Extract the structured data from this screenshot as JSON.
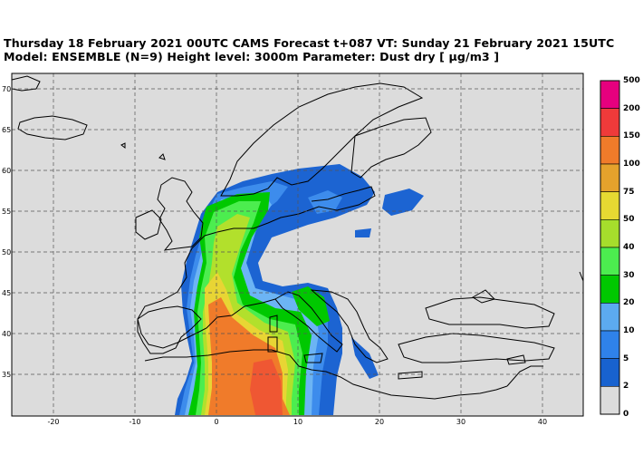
{
  "header": {
    "title_line1": "Thursday 18 February 2021 00UTC CAMS Forecast t+087 VT: Sunday 21 February 2021 15UTC",
    "title_line2": "Model: ENSEMBLE (N=9) Height level: 3000m  Parameter: Dust dry [ µg/m3 ]"
  },
  "map": {
    "lon_ticks": [
      "-20",
      "-10",
      "0",
      "10",
      "20",
      "30",
      "40"
    ],
    "lat_ticks": [
      "70",
      "65",
      "60",
      "55",
      "50",
      "45",
      "40",
      "35"
    ],
    "ocean_color": "#dcdcdc",
    "coastline_color": "#000000",
    "grid_color": "#555555"
  },
  "colorbar": {
    "labels": [
      "500",
      "200",
      "150",
      "100",
      "75",
      "50",
      "40",
      "30",
      "20",
      "10",
      "5",
      "2",
      "0"
    ],
    "colors": [
      "#e6007e",
      "#ef3a3a",
      "#f07b2a",
      "#e5a22c",
      "#e6d932",
      "#a6dd2c",
      "#4ced4f",
      "#00c800",
      "#5caaf0",
      "#2f82ea",
      "#1862cf",
      "#dcdcdc"
    ]
  }
}
